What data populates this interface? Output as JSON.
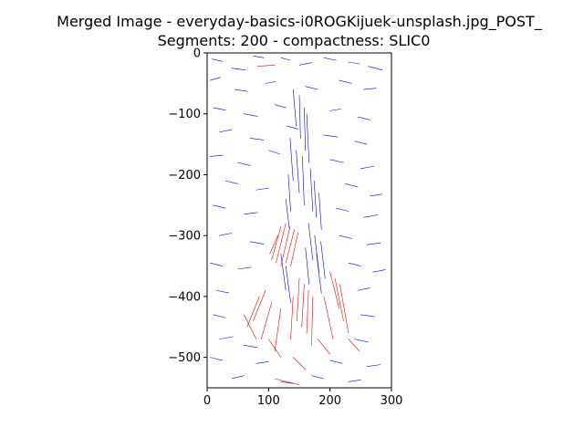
{
  "chart_data": {
    "type": "line",
    "title_line1": "Merged Image - everyday-basics-i0ROGKijuek-unsplash.jpg_POST_",
    "title_line2": "Segments: 200 - compactness: SLIC0",
    "xlim": [
      0,
      300
    ],
    "ylim": [
      -550,
      0
    ],
    "x_ticks": [
      0,
      100,
      200,
      300
    ],
    "y_ticks": [
      0,
      -100,
      -200,
      -300,
      -400,
      -500
    ],
    "x_tick_labels": [
      "0",
      "100",
      "200",
      "300"
    ],
    "y_tick_labels": [
      "0",
      "−100",
      "−200",
      "−300",
      "−400",
      "−500"
    ],
    "grid": false,
    "colors": {
      "blue": "#0000ff",
      "red": "#ff0000"
    },
    "series": [
      {
        "color": "blue",
        "segments": [
          [
            [
              8,
              -10
            ],
            [
              25,
              -14
            ]
          ],
          [
            [
              40,
              -25
            ],
            [
              62,
              -28
            ]
          ],
          [
            [
              75,
              -5
            ],
            [
              92,
              -8
            ]
          ],
          [
            [
              120,
              -8
            ],
            [
              135,
              -12
            ]
          ],
          [
            [
              150,
              -20
            ],
            [
              170,
              -16
            ]
          ],
          [
            [
              190,
              -8
            ],
            [
              210,
              -12
            ]
          ],
          [
            [
              230,
              -15
            ],
            [
              248,
              -18
            ]
          ],
          [
            [
              262,
              -22
            ],
            [
              285,
              -28
            ]
          ],
          [
            [
              5,
              -45
            ],
            [
              22,
              -40
            ]
          ],
          [
            [
              45,
              -60
            ],
            [
              65,
              -63
            ]
          ],
          [
            [
              95,
              -50
            ],
            [
              112,
              -47
            ]
          ],
          [
            [
              160,
              -55
            ],
            [
              180,
              -60
            ]
          ],
          [
            [
              215,
              -45
            ],
            [
              235,
              -50
            ]
          ],
          [
            [
              255,
              -60
            ],
            [
              275,
              -58
            ]
          ],
          [
            [
              10,
              -90
            ],
            [
              30,
              -94
            ]
          ],
          [
            [
              60,
              -100
            ],
            [
              82,
              -104
            ]
          ],
          [
            [
              110,
              -85
            ],
            [
              128,
              -90
            ]
          ],
          [
            [
              200,
              -95
            ],
            [
              218,
              -92
            ]
          ],
          [
            [
              245,
              -105
            ],
            [
              265,
              -110
            ]
          ],
          [
            [
              20,
              -130
            ],
            [
              40,
              -126
            ]
          ],
          [
            [
              70,
              -140
            ],
            [
              92,
              -143
            ]
          ],
          [
            [
              130,
              -120
            ],
            [
              148,
              -125
            ]
          ],
          [
            [
              190,
              -135
            ],
            [
              212,
              -138
            ]
          ],
          [
            [
              240,
              -145
            ],
            [
              260,
              -150
            ]
          ],
          [
            [
              5,
              -170
            ],
            [
              26,
              -168
            ]
          ],
          [
            [
              50,
              -180
            ],
            [
              70,
              -185
            ]
          ],
          [
            [
              100,
              -160
            ],
            [
              118,
              -166
            ]
          ],
          [
            [
              200,
              -175
            ],
            [
              222,
              -180
            ]
          ],
          [
            [
              250,
              -190
            ],
            [
              272,
              -186
            ]
          ],
          [
            [
              30,
              -210
            ],
            [
              50,
              -215
            ]
          ],
          [
            [
              80,
              -225
            ],
            [
              100,
              -222
            ]
          ],
          [
            [
              225,
              -215
            ],
            [
              245,
              -220
            ]
          ],
          [
            [
              265,
              -235
            ],
            [
              285,
              -232
            ]
          ],
          [
            [
              10,
              -250
            ],
            [
              30,
              -255
            ]
          ],
          [
            [
              60,
              -265
            ],
            [
              82,
              -262
            ]
          ],
          [
            [
              210,
              -255
            ],
            [
              230,
              -260
            ]
          ],
          [
            [
              255,
              -270
            ],
            [
              278,
              -266
            ]
          ],
          [
            [
              20,
              -300
            ],
            [
              40,
              -296
            ]
          ],
          [
            [
              70,
              -310
            ],
            [
              92,
              -314
            ]
          ],
          [
            [
              215,
              -300
            ],
            [
              236,
              -305
            ]
          ],
          [
            [
              260,
              -315
            ],
            [
              282,
              -312
            ]
          ],
          [
            [
              5,
              -345
            ],
            [
              25,
              -350
            ]
          ],
          [
            [
              50,
              -355
            ],
            [
              72,
              -352
            ]
          ],
          [
            [
              230,
              -345
            ],
            [
              250,
              -350
            ]
          ],
          [
            [
              270,
              -360
            ],
            [
              290,
              -356
            ]
          ],
          [
            [
              15,
              -390
            ],
            [
              35,
              -394
            ]
          ],
          [
            [
              245,
              -390
            ],
            [
              265,
              -386
            ]
          ],
          [
            [
              10,
              -430
            ],
            [
              30,
              -435
            ]
          ],
          [
            [
              250,
              -430
            ],
            [
              272,
              -433
            ]
          ],
          [
            [
              20,
              -470
            ],
            [
              42,
              -466
            ]
          ],
          [
            [
              60,
              -480
            ],
            [
              82,
              -484
            ]
          ],
          [
            [
              240,
              -470
            ],
            [
              262,
              -475
            ]
          ],
          [
            [
              5,
              -500
            ],
            [
              25,
              -505
            ]
          ],
          [
            [
              80,
              -510
            ],
            [
              100,
              -507
            ]
          ],
          [
            [
              200,
              -505
            ],
            [
              220,
              -510
            ]
          ],
          [
            [
              260,
              -515
            ],
            [
              282,
              -512
            ]
          ],
          [
            [
              40,
              -535
            ],
            [
              60,
              -530
            ]
          ],
          [
            [
              120,
              -540
            ],
            [
              140,
              -543
            ]
          ],
          [
            [
              170,
              -530
            ],
            [
              190,
              -535
            ]
          ],
          [
            [
              230,
              -540
            ],
            [
              250,
              -537
            ]
          ],
          [
            [
              140,
              -60
            ],
            [
              145,
              -120
            ]
          ],
          [
            [
              150,
              -70
            ],
            [
              152,
              -140
            ]
          ],
          [
            [
              158,
              -90
            ],
            [
              160,
              -160
            ]
          ],
          [
            [
              162,
              -100
            ],
            [
              166,
              -180
            ]
          ],
          [
            [
              135,
              -140
            ],
            [
              140,
              -210
            ]
          ],
          [
            [
              145,
              -160
            ],
            [
              150,
              -230
            ]
          ],
          [
            [
              155,
              -170
            ],
            [
              158,
              -250
            ]
          ],
          [
            [
              168,
              -190
            ],
            [
              172,
              -260
            ]
          ],
          [
            [
              132,
              -200
            ],
            [
              136,
              -260
            ]
          ],
          [
            [
              174,
              -210
            ],
            [
              178,
              -270
            ]
          ],
          [
            [
              182,
              -230
            ],
            [
              186,
              -290
            ]
          ],
          [
            [
              128,
              -240
            ],
            [
              134,
              -290
            ]
          ],
          [
            [
              165,
              -280
            ],
            [
              172,
              -340
            ]
          ],
          [
            [
              175,
              -300
            ],
            [
              182,
              -360
            ]
          ],
          [
            [
              185,
              -310
            ],
            [
              192,
              -370
            ]
          ],
          [
            [
              160,
              -320
            ],
            [
              166,
              -380
            ]
          ],
          [
            [
              178,
              -330
            ],
            [
              186,
              -395
            ]
          ],
          [
            [
              120,
              -330
            ],
            [
              128,
              -390
            ]
          ],
          [
            [
              128,
              -350
            ],
            [
              136,
              -410
            ]
          ]
        ]
      },
      {
        "color": "red",
        "segments": [
          [
            [
              82,
              -22
            ],
            [
              110,
              -20
            ]
          ],
          [
            [
              120,
              -285
            ],
            [
              105,
              -340
            ]
          ],
          [
            [
              128,
              -280
            ],
            [
              112,
              -345
            ]
          ],
          [
            [
              135,
              -285
            ],
            [
              120,
              -350
            ]
          ],
          [
            [
              142,
              -290
            ],
            [
              128,
              -345
            ]
          ],
          [
            [
              148,
              -295
            ],
            [
              136,
              -350
            ]
          ],
          [
            [
              115,
              -300
            ],
            [
              102,
              -330
            ]
          ],
          [
            [
              150,
              -370
            ],
            [
              146,
              -440
            ]
          ],
          [
            [
              158,
              -380
            ],
            [
              154,
              -450
            ]
          ],
          [
            [
              165,
              -390
            ],
            [
              162,
              -460
            ]
          ],
          [
            [
              140,
              -400
            ],
            [
              136,
              -470
            ]
          ],
          [
            [
              172,
              -400
            ],
            [
              170,
              -480
            ]
          ],
          [
            [
              200,
              -360
            ],
            [
              215,
              -420
            ]
          ],
          [
            [
              208,
              -370
            ],
            [
              222,
              -440
            ]
          ],
          [
            [
              216,
              -380
            ],
            [
              230,
              -460
            ]
          ],
          [
            [
              190,
              -400
            ],
            [
              205,
              -470
            ]
          ],
          [
            [
              95,
              -390
            ],
            [
              75,
              -440
            ]
          ],
          [
            [
              85,
              -400
            ],
            [
              65,
              -450
            ]
          ],
          [
            [
              105,
              -410
            ],
            [
              88,
              -470
            ]
          ],
          [
            [
              120,
              -420
            ],
            [
              110,
              -490
            ]
          ],
          [
            [
              60,
              -430
            ],
            [
              80,
              -470
            ]
          ],
          [
            [
              100,
              -470
            ],
            [
              120,
              -500
            ]
          ],
          [
            [
              180,
              -470
            ],
            [
              200,
              -495
            ]
          ],
          [
            [
              230,
              -470
            ],
            [
              248,
              -490
            ]
          ],
          [
            [
              140,
              -500
            ],
            [
              160,
              -520
            ]
          ],
          [
            [
              110,
              -535
            ],
            [
              150,
              -545
            ]
          ]
        ]
      }
    ]
  }
}
